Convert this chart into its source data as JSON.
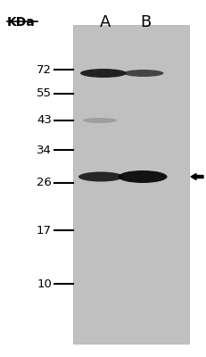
{
  "figsize": [
    2.31,
    4.0
  ],
  "dpi": 100,
  "gel_bg_color": "#c0c0c0",
  "white_bg": "#ffffff",
  "lane_labels": [
    "A",
    "B"
  ],
  "lane_label_fontsize": 13,
  "kda_label": "KDa",
  "kda_fontsize": 10,
  "mw_markers": [
    "72",
    "55",
    "43",
    "34",
    "26",
    "17",
    "10"
  ],
  "mw_fontsize": 9.5,
  "band_color_dark": "#111111",
  "band_color_faint": "#888888",
  "arrow_color": "#000000"
}
